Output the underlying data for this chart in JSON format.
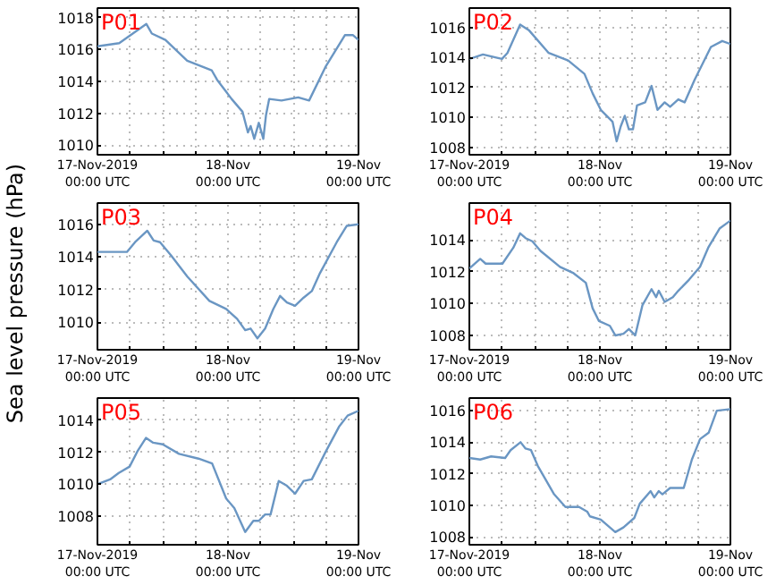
{
  "chart_data": [
    {
      "type": "line",
      "title": "P01",
      "x": [
        "2019-11-17T00:00",
        "2019-11-17T04:00",
        "2019-11-17T09:00",
        "2019-11-17T10:00",
        "2019-11-17T12:30",
        "2019-11-17T16:30",
        "2019-11-17T21:00",
        "2019-11-17T22:00",
        "2019-11-18T00:40",
        "2019-11-18T02:40",
        "2019-11-18T03:40",
        "2019-11-18T04:10",
        "2019-11-18T04:50",
        "2019-11-18T05:40",
        "2019-11-18T06:30",
        "2019-11-18T07:00",
        "2019-11-18T07:35",
        "2019-11-18T09:50",
        "2019-11-18T12:55",
        "2019-11-18T14:55",
        "2019-11-18T17:55",
        "2019-11-18T21:30",
        "2019-11-18T23:00",
        "2019-11-19T00:00"
      ],
      "series": [
        {
          "color": "#6a96c3",
          "values": [
            1016.2,
            1016.4,
            1017.6,
            1017.0,
            1016.6,
            1015.3,
            1014.7,
            1014.1,
            1012.9,
            1012.1,
            1010.8,
            1011.2,
            1010.4,
            1011.4,
            1010.4,
            1011.9,
            1012.9,
            1012.8,
            1013.0,
            1012.8,
            1014.9,
            1016.9,
            1016.9,
            1016.6
          ]
        }
      ],
      "xlim": [
        "2019-11-17T00:00",
        "2019-11-19T00:00"
      ],
      "xticks": [
        {
          "value": "2019-11-17T00:00",
          "label": "17-Nov-2019\n00:00 UTC"
        },
        {
          "value": "2019-11-17T06:00",
          "label": null
        },
        {
          "value": "2019-11-17T12:00",
          "label": null
        },
        {
          "value": "2019-11-17T18:00",
          "label": null
        },
        {
          "value": "2019-11-18T00:00",
          "label": "18-Nov\n00:00 UTC"
        },
        {
          "value": "2019-11-18T06:00",
          "label": null
        },
        {
          "value": "2019-11-18T12:00",
          "label": null
        },
        {
          "value": "2019-11-18T18:00",
          "label": null
        },
        {
          "value": "2019-11-19T00:00",
          "label": "19-Nov\n00:00 UTC"
        }
      ],
      "ylim": [
        1009.4,
        1018.6
      ],
      "yticks": [
        1010,
        1012,
        1014,
        1016,
        1018
      ],
      "grid": true
    },
    {
      "type": "line",
      "title": "P02",
      "x": [
        "2019-11-17T00:00",
        "2019-11-17T02:30",
        "2019-11-17T06:00",
        "2019-11-17T07:00",
        "2019-11-17T09:20",
        "2019-11-17T11:00",
        "2019-11-17T14:35",
        "2019-11-17T18:10",
        "2019-11-17T21:10",
        "2019-11-17T22:40",
        "2019-11-18T00:10",
        "2019-11-18T02:20",
        "2019-11-18T03:05",
        "2019-11-18T03:50",
        "2019-11-18T04:35",
        "2019-11-18T05:20",
        "2019-11-18T06:05",
        "2019-11-18T06:50",
        "2019-11-18T08:20",
        "2019-11-18T09:30",
        "2019-11-18T10:35",
        "2019-11-18T11:55",
        "2019-11-18T12:55",
        "2019-11-18T14:25",
        "2019-11-18T15:35",
        "2019-11-18T17:25",
        "2019-11-18T20:25",
        "2019-11-18T22:30",
        "2019-11-19T00:00"
      ],
      "series": [
        {
          "color": "#6a96c3",
          "values": [
            1013.9,
            1014.2,
            1013.9,
            1014.3,
            1016.2,
            1015.8,
            1014.3,
            1013.8,
            1012.9,
            1011.6,
            1010.5,
            1009.7,
            1008.4,
            1009.4,
            1010.1,
            1009.2,
            1009.2,
            1010.8,
            1011.0,
            1012.1,
            1010.5,
            1011.0,
            1010.7,
            1011.2,
            1011.0,
            1012.5,
            1014.7,
            1015.1,
            1014.9
          ]
        }
      ],
      "xlim": [
        "2019-11-17T00:00",
        "2019-11-19T00:00"
      ],
      "xticks": [
        {
          "value": "2019-11-17T00:00",
          "label": "17-Nov-2019\n00:00 UTC"
        },
        {
          "value": "2019-11-17T06:00",
          "label": null
        },
        {
          "value": "2019-11-17T12:00",
          "label": null
        },
        {
          "value": "2019-11-17T18:00",
          "label": null
        },
        {
          "value": "2019-11-18T00:00",
          "label": "18-Nov\n00:00 UTC"
        },
        {
          "value": "2019-11-18T06:00",
          "label": null
        },
        {
          "value": "2019-11-18T12:00",
          "label": null
        },
        {
          "value": "2019-11-18T18:00",
          "label": null
        },
        {
          "value": "2019-11-19T00:00",
          "label": "19-Nov\n00:00 UTC"
        }
      ],
      "ylim": [
        1007.5,
        1017.3
      ],
      "yticks": [
        1008,
        1010,
        1012,
        1014,
        1016
      ],
      "grid": true
    },
    {
      "type": "line",
      "title": "P03",
      "ylabel": "Sea level pressure (hPa)",
      "x": [
        "2019-11-17T00:00",
        "2019-11-17T05:25",
        "2019-11-17T06:55",
        "2019-11-17T09:10",
        "2019-11-17T10:20",
        "2019-11-17T11:30",
        "2019-11-17T13:30",
        "2019-11-17T16:30",
        "2019-11-17T20:35",
        "2019-11-17T23:40",
        "2019-11-18T01:40",
        "2019-11-18T03:10",
        "2019-11-18T04:10",
        "2019-11-18T05:25",
        "2019-11-18T06:50",
        "2019-11-18T08:20",
        "2019-11-18T09:35",
        "2019-11-18T10:50",
        "2019-11-18T12:20",
        "2019-11-18T13:55",
        "2019-11-18T15:25",
        "2019-11-18T16:55",
        "2019-11-18T20:00",
        "2019-11-18T21:50",
        "2019-11-19T00:00"
      ],
      "series": [
        {
          "color": "#6a96c3",
          "values": [
            1014.3,
            1014.3,
            1014.9,
            1015.6,
            1015.0,
            1014.9,
            1014.1,
            1012.8,
            1011.3,
            1010.8,
            1010.2,
            1009.5,
            1009.6,
            1009.0,
            1009.6,
            1010.8,
            1011.6,
            1011.2,
            1011.0,
            1011.5,
            1011.9,
            1013.0,
            1014.9,
            1015.9,
            1016.0
          ]
        }
      ],
      "xlim": [
        "2019-11-17T00:00",
        "2019-11-19T00:00"
      ],
      "xticks": [
        {
          "value": "2019-11-17T00:00",
          "label": "17-Nov-2019\n00:00 UTC"
        },
        {
          "value": "2019-11-17T06:00",
          "label": null
        },
        {
          "value": "2019-11-17T12:00",
          "label": null
        },
        {
          "value": "2019-11-17T18:00",
          "label": null
        },
        {
          "value": "2019-11-18T00:00",
          "label": "18-Nov\n00:00 UTC"
        },
        {
          "value": "2019-11-18T06:00",
          "label": null
        },
        {
          "value": "2019-11-18T12:00",
          "label": null
        },
        {
          "value": "2019-11-18T18:00",
          "label": null
        },
        {
          "value": "2019-11-19T00:00",
          "label": "19-Nov\n00:00 UTC"
        }
      ],
      "ylim": [
        1008.3,
        1017.3
      ],
      "yticks": [
        1010,
        1012,
        1014,
        1016
      ],
      "grid": true
    },
    {
      "type": "line",
      "title": "P04",
      "x": [
        "2019-11-17T00:00",
        "2019-11-17T02:00",
        "2019-11-17T03:00",
        "2019-11-17T06:05",
        "2019-11-17T08:05",
        "2019-11-17T09:20",
        "2019-11-17T10:20",
        "2019-11-17T11:35",
        "2019-11-17T13:05",
        "2019-11-17T16:40",
        "2019-11-17T19:10",
        "2019-11-17T21:25",
        "2019-11-17T22:40",
        "2019-11-17T23:50",
        "2019-11-18T01:50",
        "2019-11-18T02:50",
        "2019-11-18T04:20",
        "2019-11-18T05:20",
        "2019-11-18T06:30",
        "2019-11-18T07:50",
        "2019-11-18T09:30",
        "2019-11-18T10:20",
        "2019-11-18T10:50",
        "2019-11-18T11:55",
        "2019-11-18T13:25",
        "2019-11-18T14:25",
        "2019-11-18T16:25",
        "2019-11-18T18:25",
        "2019-11-18T19:55",
        "2019-11-18T22:00",
        "2019-11-19T00:00"
      ],
      "series": [
        {
          "color": "#6a96c3",
          "values": [
            1012.2,
            1012.8,
            1012.5,
            1012.5,
            1013.5,
            1014.4,
            1014.1,
            1013.9,
            1013.3,
            1012.3,
            1011.9,
            1011.3,
            1009.7,
            1008.9,
            1008.6,
            1008.0,
            1008.1,
            1008.4,
            1008.0,
            1009.9,
            1010.9,
            1010.4,
            1010.8,
            1010.1,
            1010.4,
            1010.8,
            1011.5,
            1012.3,
            1013.5,
            1014.7,
            1015.2
          ]
        }
      ],
      "xlim": [
        "2019-11-17T00:00",
        "2019-11-19T00:00"
      ],
      "xticks": [
        {
          "value": "2019-11-17T00:00",
          "label": "17-Nov-2019\n00:00 UTC"
        },
        {
          "value": "2019-11-17T06:00",
          "label": null
        },
        {
          "value": "2019-11-17T12:00",
          "label": null
        },
        {
          "value": "2019-11-17T18:00",
          "label": null
        },
        {
          "value": "2019-11-18T00:00",
          "label": "18-Nov\n00:00 UTC"
        },
        {
          "value": "2019-11-18T06:00",
          "label": null
        },
        {
          "value": "2019-11-18T12:00",
          "label": null
        },
        {
          "value": "2019-11-18T18:00",
          "label": null
        },
        {
          "value": "2019-11-19T00:00",
          "label": "19-Nov\n00:00 UTC"
        }
      ],
      "ylim": [
        1007.1,
        1016.3
      ],
      "yticks": [
        1008,
        1010,
        1012,
        1014
      ],
      "grid": true
    },
    {
      "type": "line",
      "title": "P05",
      "x": [
        "2019-11-17T00:00",
        "2019-11-17T02:20",
        "2019-11-17T03:55",
        "2019-11-17T05:55",
        "2019-11-17T07:25",
        "2019-11-17T08:55",
        "2019-11-17T10:15",
        "2019-11-17T12:00",
        "2019-11-17T15:00",
        "2019-11-17T18:35",
        "2019-11-17T21:05",
        "2019-11-17T23:40",
        "2019-11-18T01:10",
        "2019-11-18T03:10",
        "2019-11-18T04:40",
        "2019-11-18T05:40",
        "2019-11-18T06:50",
        "2019-11-18T07:50",
        "2019-11-18T09:20",
        "2019-11-18T10:50",
        "2019-11-18T12:20",
        "2019-11-18T13:55",
        "2019-11-18T15:25",
        "2019-11-18T17:55",
        "2019-11-18T20:25",
        "2019-11-18T22:00",
        "2019-11-19T00:00"
      ],
      "series": [
        {
          "color": "#6a96c3",
          "values": [
            1010.0,
            1010.3,
            1010.7,
            1011.1,
            1012.1,
            1012.9,
            1012.6,
            1012.5,
            1011.9,
            1011.6,
            1011.3,
            1009.1,
            1008.5,
            1007.0,
            1007.7,
            1007.7,
            1008.1,
            1008.1,
            1010.2,
            1009.9,
            1009.4,
            1010.2,
            1010.3,
            1012.0,
            1013.6,
            1014.3,
            1014.6
          ]
        }
      ],
      "xlim": [
        "2019-11-17T00:00",
        "2019-11-19T00:00"
      ],
      "xticks": [
        {
          "value": "2019-11-17T00:00",
          "label": "17-Nov-2019\n00:00 UTC"
        },
        {
          "value": "2019-11-17T06:00",
          "label": null
        },
        {
          "value": "2019-11-17T12:00",
          "label": null
        },
        {
          "value": "2019-11-17T18:00",
          "label": null
        },
        {
          "value": "2019-11-18T00:00",
          "label": "18-Nov\n00:00 UTC"
        },
        {
          "value": "2019-11-18T06:00",
          "label": null
        },
        {
          "value": "2019-11-18T12:00",
          "label": null
        },
        {
          "value": "2019-11-18T18:00",
          "label": null
        },
        {
          "value": "2019-11-19T00:00",
          "label": "19-Nov\n00:00 UTC"
        }
      ],
      "ylim": [
        1006.2,
        1015.4
      ],
      "yticks": [
        1008,
        1010,
        1012,
        1014
      ],
      "grid": true
    },
    {
      "type": "line",
      "title": "P06",
      "x": [
        "2019-11-17T00:00",
        "2019-11-17T02:00",
        "2019-11-17T04:00",
        "2019-11-17T06:35",
        "2019-11-17T07:35",
        "2019-11-17T09:25",
        "2019-11-17T10:20",
        "2019-11-17T11:20",
        "2019-11-17T12:35",
        "2019-11-17T15:35",
        "2019-11-17T17:40",
        "2019-11-17T20:10",
        "2019-11-17T21:40",
        "2019-11-17T22:10",
        "2019-11-18T00:10",
        "2019-11-18T02:50",
        "2019-11-18T04:20",
        "2019-11-18T06:20",
        "2019-11-18T07:20",
        "2019-11-18T09:20",
        "2019-11-18T10:00",
        "2019-11-18T10:50",
        "2019-11-18T11:30",
        "2019-11-18T12:55",
        "2019-11-18T15:25",
        "2019-11-18T16:55",
        "2019-11-18T18:25",
        "2019-11-18T20:00",
        "2019-11-18T21:30",
        "2019-11-19T00:00"
      ],
      "series": [
        {
          "color": "#6a96c3",
          "values": [
            1013.0,
            1012.9,
            1013.1,
            1013.0,
            1013.5,
            1014.0,
            1013.6,
            1013.5,
            1012.5,
            1010.7,
            1009.9,
            1009.9,
            1009.6,
            1009.3,
            1009.1,
            1008.3,
            1008.6,
            1009.2,
            1010.1,
            1010.9,
            1010.5,
            1010.9,
            1010.7,
            1011.1,
            1011.1,
            1012.9,
            1014.2,
            1014.6,
            1016.0,
            1016.1
          ]
        }
      ],
      "xlim": [
        "2019-11-17T00:00",
        "2019-11-19T00:00"
      ],
      "xticks": [
        {
          "value": "2019-11-17T00:00",
          "label": "17-Nov-2019\n00:00 UTC"
        },
        {
          "value": "2019-11-17T06:00",
          "label": null
        },
        {
          "value": "2019-11-17T12:00",
          "label": null
        },
        {
          "value": "2019-11-17T18:00",
          "label": null
        },
        {
          "value": "2019-11-18T00:00",
          "label": "18-Nov\n00:00 UTC"
        },
        {
          "value": "2019-11-18T06:00",
          "label": null
        },
        {
          "value": "2019-11-18T12:00",
          "label": null
        },
        {
          "value": "2019-11-18T18:00",
          "label": null
        },
        {
          "value": "2019-11-19T00:00",
          "label": "19-Nov\n00:00 UTC"
        }
      ],
      "ylim": [
        1007.5,
        1016.8
      ],
      "yticks": [
        1008,
        1010,
        1012,
        1014,
        1016
      ],
      "grid": true
    }
  ]
}
